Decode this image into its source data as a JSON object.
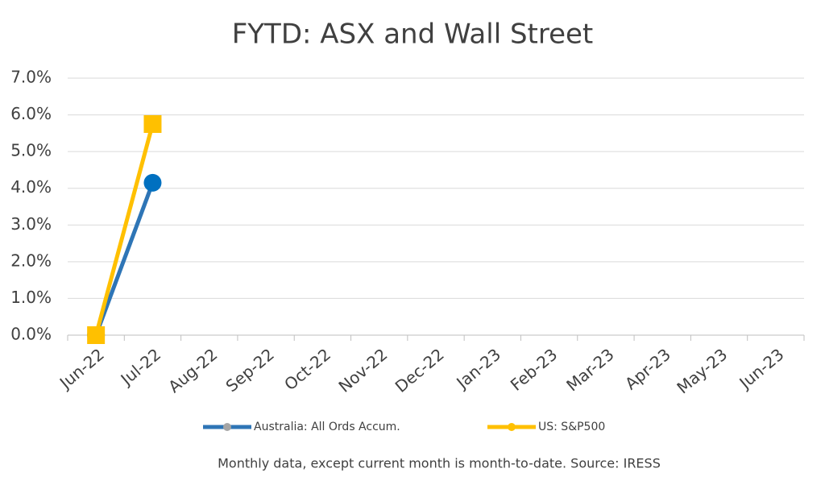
{
  "chart_data": {
    "type": "line",
    "title": "FYTD: ASX and Wall Street",
    "categories": [
      "Jun-22",
      "Jul-22",
      "Aug-22",
      "Sep-22",
      "Oct-22",
      "Nov-22",
      "Dec-22",
      "Jan-23",
      "Feb-23",
      "Mar-23",
      "Apr-23",
      "May-23",
      "Jun-23"
    ],
    "series": [
      {
        "name": "Australia: All Ords Accum.",
        "color": "#2e75b6",
        "marker": "circle",
        "marker_color": "#0070c0",
        "values": [
          0,
          4.15,
          null,
          null,
          null,
          null,
          null,
          null,
          null,
          null,
          null,
          null,
          null
        ]
      },
      {
        "name": "US: S&P500",
        "color": "#ffc000",
        "marker": "square",
        "marker_color": "#ffc000",
        "values": [
          0,
          5.75,
          null,
          null,
          null,
          null,
          null,
          null,
          null,
          null,
          null,
          null,
          null
        ]
      }
    ],
    "ylim": [
      0,
      7
    ],
    "yticks": [
      {
        "value": 0,
        "label": "0.0%"
      },
      {
        "value": 1,
        "label": "1.0%"
      },
      {
        "value": 2,
        "label": "2.0%"
      },
      {
        "value": 3,
        "label": "3.0%"
      },
      {
        "value": 4,
        "label": "4.0%"
      },
      {
        "value": 5,
        "label": "5.0%"
      },
      {
        "value": 6,
        "label": "6.0%"
      },
      {
        "value": 7,
        "label": "7.0%"
      }
    ],
    "grid": true,
    "legend": "bottom",
    "footnote": "Monthly data, except current month is month-to-date.  Source: IRESS"
  }
}
